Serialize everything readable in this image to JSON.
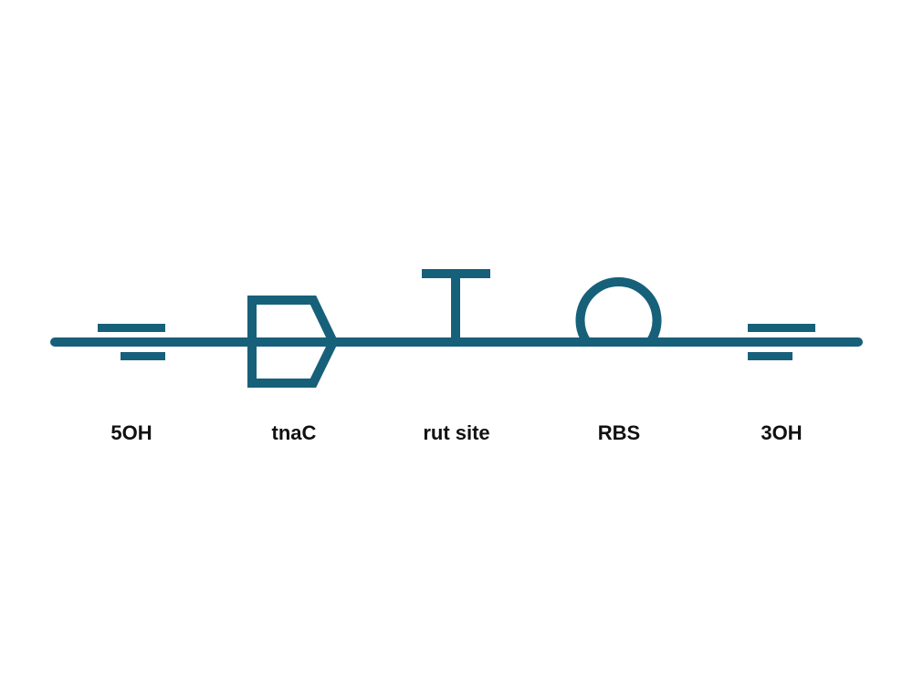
{
  "diagram": {
    "stroke_color": "#17607a",
    "label_color": "#111111",
    "parts": [
      {
        "label": "5OH",
        "glyph": "overhang-5prime-icon"
      },
      {
        "label": "tnaC",
        "glyph": "cds-icon"
      },
      {
        "label": "rut site",
        "glyph": "protein-binding-site-icon"
      },
      {
        "label": "RBS",
        "glyph": "ribosome-binding-site-icon"
      },
      {
        "label": "3OH",
        "glyph": "overhang-3prime-icon"
      }
    ]
  }
}
